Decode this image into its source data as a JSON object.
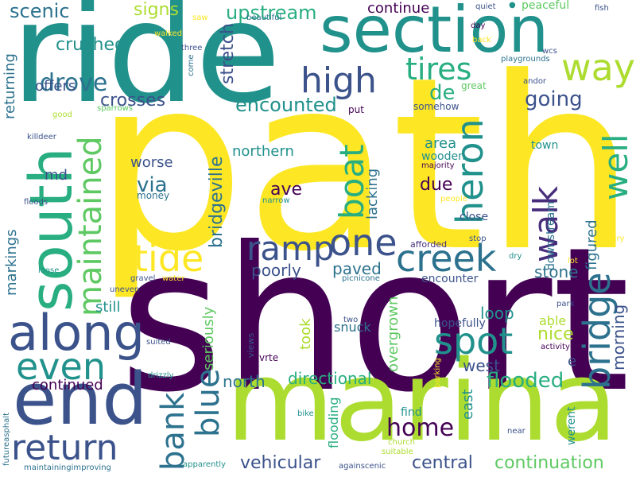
{
  "title": "Word cloud",
  "palette": {
    "dark_purple": "#440154",
    "purple": "#472d7b",
    "indigo": "#3b528b",
    "blue": "#2c728e",
    "teal": "#21918c",
    "sea_green": "#28ae80",
    "green": "#5ec962",
    "lime": "#addc30",
    "yellow": "#fde725"
  },
  "words": [
    {
      "text": "path",
      "weight": 100,
      "color": "#fde725"
    },
    {
      "text": "short",
      "weight": 95,
      "color": "#440154"
    },
    {
      "text": "ride",
      "weight": 80,
      "color": "#21918c"
    },
    {
      "text": "marina",
      "weight": 75,
      "color": "#addc30"
    },
    {
      "text": "section",
      "weight": 45,
      "color": "#21918c"
    },
    {
      "text": "end",
      "weight": 45,
      "color": "#3b528b"
    },
    {
      "text": "south",
      "weight": 40,
      "color": "#28ae80"
    },
    {
      "text": "along",
      "weight": 35,
      "color": "#3b528b"
    },
    {
      "text": "return",
      "weight": 25,
      "color": "#3b528b"
    },
    {
      "text": "even",
      "weight": 25,
      "color": "#21918c"
    },
    {
      "text": "bridge",
      "weight": 25,
      "color": "#2c728e"
    },
    {
      "text": "creek",
      "weight": 25,
      "color": "#2c728e"
    },
    {
      "text": "ramp",
      "weight": 25,
      "color": "#3b528b"
    },
    {
      "text": "one",
      "weight": 25,
      "color": "#3b528b"
    },
    {
      "text": "maintained",
      "weight": 25,
      "color": "#5ec962"
    },
    {
      "text": "tide",
      "weight": 25,
      "color": "#fde725"
    },
    {
      "text": "spot",
      "weight": 25,
      "color": "#21918c"
    },
    {
      "text": "heron",
      "weight": 24,
      "color": "#21918c"
    },
    {
      "text": "boat",
      "weight": 24,
      "color": "#28ae80"
    },
    {
      "text": "way",
      "weight": 24,
      "color": "#addc30"
    },
    {
      "text": "well",
      "weight": 24,
      "color": "#28ae80"
    },
    {
      "text": "high",
      "weight": 22,
      "color": "#3b528b"
    },
    {
      "text": "tires",
      "weight": 20,
      "color": "#28ae80"
    },
    {
      "text": "walk",
      "weight": 22,
      "color": "#472d7b"
    },
    {
      "text": "bank",
      "weight": 20,
      "color": "#2c728e"
    },
    {
      "text": "blue",
      "weight": 20,
      "color": "#2c728e"
    },
    {
      "text": "home",
      "weight": 20,
      "color": "#440154"
    },
    {
      "text": "drove",
      "weight": 18,
      "color": "#2c728e"
    },
    {
      "text": "going",
      "weight": 15,
      "color": "#3b528b"
    },
    {
      "text": "crushed",
      "weight": 12,
      "color": "#21918c"
    },
    {
      "text": "crosses",
      "weight": 12,
      "color": "#3b528b"
    },
    {
      "text": "encounted",
      "weight": 12,
      "color": "#21918c"
    },
    {
      "text": "upstream",
      "weight": 12,
      "color": "#28ae80"
    },
    {
      "text": "scenic",
      "weight": 12,
      "color": "#2c728e"
    },
    {
      "text": "signs",
      "weight": 12,
      "color": "#addc30"
    },
    {
      "text": "stretch",
      "weight": 12,
      "color": "#3b528b"
    },
    {
      "text": "de",
      "weight": 12,
      "color": "#28ae80"
    },
    {
      "text": "continue",
      "weight": 10,
      "color": "#440154"
    },
    {
      "text": "offers",
      "weight": 10,
      "color": "#3b528b"
    },
    {
      "text": "returning",
      "weight": 10,
      "color": "#2c728e"
    },
    {
      "text": "bridgeville",
      "weight": 12,
      "color": "#2c728e"
    },
    {
      "text": "northern",
      "weight": 10,
      "color": "#21918c"
    },
    {
      "text": "worse",
      "weight": 10,
      "color": "#3b528b"
    },
    {
      "text": "via",
      "weight": 12,
      "color": "#2c728e"
    },
    {
      "text": "ave",
      "weight": 12,
      "color": "#440154"
    },
    {
      "text": "due",
      "weight": 12,
      "color": "#440154"
    },
    {
      "text": "lacking",
      "weight": 10,
      "color": "#2c728e"
    },
    {
      "text": "area",
      "weight": 10,
      "color": "#21918c"
    },
    {
      "text": "wooden",
      "weight": 8,
      "color": "#21918c"
    },
    {
      "text": "md",
      "weight": 10,
      "color": "#3b528b"
    },
    {
      "text": "money",
      "weight": 7,
      "color": "#2c728e"
    },
    {
      "text": "markings",
      "weight": 10,
      "color": "#2c728e"
    },
    {
      "text": "figured",
      "weight": 10,
      "color": "#2c728e"
    },
    {
      "text": "downstream",
      "weight": 8,
      "color": "#2c728e"
    },
    {
      "text": "morning",
      "weight": 12,
      "color": "#3b528b"
    },
    {
      "text": "paved",
      "weight": 12,
      "color": "#2c728e"
    },
    {
      "text": "poorly",
      "weight": 12,
      "color": "#3b528b"
    },
    {
      "text": "stone",
      "weight": 12,
      "color": "#2c728e"
    },
    {
      "text": "close",
      "weight": 8,
      "color": "#3b528b"
    },
    {
      "text": "loop",
      "weight": 12,
      "color": "#21918c"
    },
    {
      "text": "still",
      "weight": 10,
      "color": "#21918c"
    },
    {
      "text": "seriously",
      "weight": 10,
      "color": "#5ec962"
    },
    {
      "text": "took",
      "weight": 10,
      "color": "#addc30"
    },
    {
      "text": "overgrown",
      "weight": 10,
      "color": "#5ec962"
    },
    {
      "text": "snuck",
      "weight": 10,
      "color": "#2c728e"
    },
    {
      "text": "hopefully",
      "weight": 8,
      "color": "#3b528b"
    },
    {
      "text": "nice",
      "weight": 12,
      "color": "#addc30"
    },
    {
      "text": "able",
      "weight": 10,
      "color": "#addc30"
    },
    {
      "text": "encounter",
      "weight": 8,
      "color": "#3b528b"
    },
    {
      "text": "west",
      "weight": 12,
      "color": "#3b528b"
    },
    {
      "text": "e",
      "weight": 10,
      "color": "#3b528b"
    },
    {
      "text": "north",
      "weight": 12,
      "color": "#2c728e"
    },
    {
      "text": "directional",
      "weight": 12,
      "color": "#28ae80"
    },
    {
      "text": "flooded",
      "weight": 15,
      "color": "#28ae80"
    },
    {
      "text": "continued",
      "weight": 12,
      "color": "#440154"
    },
    {
      "text": "flooding",
      "weight": 10,
      "color": "#28ae80"
    },
    {
      "text": "east",
      "weight": 10,
      "color": "#21918c"
    },
    {
      "text": "find",
      "weight": 8,
      "color": "#21918c"
    },
    {
      "text": "werent",
      "weight": 8,
      "color": "#21918c"
    },
    {
      "text": "vehicular",
      "weight": 12,
      "color": "#3b528b"
    },
    {
      "text": "central",
      "weight": 12,
      "color": "#3b528b"
    },
    {
      "text": "continuation",
      "weight": 12,
      "color": "#5ec962"
    },
    {
      "text": "views",
      "weight": 6,
      "color": "#3b528b"
    },
    {
      "text": "vrte",
      "weight": 6,
      "color": "#440154"
    },
    {
      "text": "uneven",
      "weight": 5,
      "color": "#3b528b"
    },
    {
      "text": "gravel",
      "weight": 5,
      "color": "#3b528b"
    },
    {
      "text": "water",
      "weight": 5,
      "color": "#fde725"
    },
    {
      "text": "picnicone",
      "weight": 5,
      "color": "#2c728e"
    },
    {
      "text": "suited",
      "weight": 5,
      "color": "#3b528b"
    },
    {
      "text": "drizzly",
      "weight": 5,
      "color": "#21918c"
    },
    {
      "text": "loose",
      "weight": 5,
      "color": "#21918c"
    },
    {
      "text": "floods",
      "weight": 5,
      "color": "#3b528b"
    },
    {
      "text": "killdeer",
      "weight": 5,
      "color": "#3b528b"
    },
    {
      "text": "good",
      "weight": 5,
      "color": "#addc30"
    },
    {
      "text": "sparrows",
      "weight": 5,
      "color": "#5ec962"
    },
    {
      "text": "walked",
      "weight": 5,
      "color": "#fde725"
    },
    {
      "text": "saw",
      "weight": 5,
      "color": "#fde725"
    },
    {
      "text": "three",
      "weight": 5,
      "color": "#3b528b"
    },
    {
      "text": "come",
      "weight": 5,
      "color": "#2c728e"
    },
    {
      "text": "beautiful",
      "weight": 5,
      "color": "#2c728e"
    },
    {
      "text": "narrow",
      "weight": 5,
      "color": "#21918c"
    },
    {
      "text": "put",
      "weight": 6,
      "color": "#440154"
    },
    {
      "text": "two",
      "weight": 5,
      "color": "#3b528b"
    },
    {
      "text": "somehow",
      "weight": 7,
      "color": "#3b528b"
    },
    {
      "text": "majority",
      "weight": 5,
      "color": "#440154"
    },
    {
      "text": "people",
      "weight": 5,
      "color": "#fde725"
    },
    {
      "text": "afforded",
      "weight": 6,
      "color": "#472d7b"
    },
    {
      "text": "stop",
      "weight": 5,
      "color": "#3b528b"
    },
    {
      "text": "dry",
      "weight": 5,
      "color": "#21918c"
    },
    {
      "text": "lot",
      "weight": 5,
      "color": "#fde725"
    },
    {
      "text": "scenery",
      "weight": 5,
      "color": "#fde725"
    },
    {
      "text": "park",
      "weight": 5,
      "color": "#3b528b"
    },
    {
      "text": "activity",
      "weight": 5,
      "color": "#440154"
    },
    {
      "text": "parking",
      "weight": 5,
      "color": "#fde725"
    },
    {
      "text": "church",
      "weight": 5,
      "color": "#addc30"
    },
    {
      "text": "suitable",
      "weight": 5,
      "color": "#addc30"
    },
    {
      "text": "near",
      "weight": 5,
      "color": "#3b528b"
    },
    {
      "text": "bike",
      "weight": 5,
      "color": "#21918c"
    },
    {
      "text": "againscenic",
      "weight": 5,
      "color": "#3b528b"
    },
    {
      "text": "apparently",
      "weight": 5,
      "color": "#21918c"
    },
    {
      "text": "maintainingimproving",
      "weight": 5,
      "color": "#2c728e"
    },
    {
      "text": "futureasphalt",
      "weight": 5,
      "color": "#2c728e"
    },
    {
      "text": "quiet",
      "weight": 5,
      "color": "#3b528b"
    },
    {
      "text": "peaceful",
      "weight": 8,
      "color": "#5ec962"
    },
    {
      "text": "fish",
      "weight": 5,
      "color": "#3b528b"
    },
    {
      "text": "day",
      "weight": 5,
      "color": "#440154"
    },
    {
      "text": "back",
      "weight": 5,
      "color": "#fde725"
    },
    {
      "text": "wcs",
      "weight": 5,
      "color": "#3b528b"
    },
    {
      "text": "playgrounds",
      "weight": 5,
      "color": "#2c728e"
    },
    {
      "text": "andor",
      "weight": 5,
      "color": "#3b528b"
    },
    {
      "text": "great",
      "weight": 6,
      "color": "#5ec962"
    },
    {
      "text": "town",
      "weight": 7,
      "color": "#21918c"
    },
    {
      "text": "ride",
      "weight": 0,
      "color": "#21918c",
      "hidden": true
    }
  ]
}
